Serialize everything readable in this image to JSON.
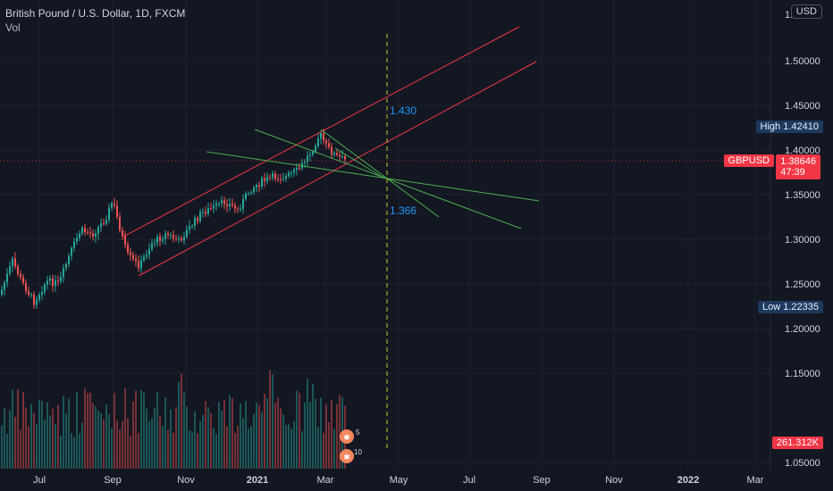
{
  "header": {
    "title": "British Pound / U.S. Dollar, 1D, FXCM",
    "volume_label": "Vol",
    "currency_button": "USD"
  },
  "price_axis": {
    "ticks": [
      "1.50000",
      "1.45000",
      "1.40000",
      "1.35000",
      "1.30000",
      "1.25000",
      "1.20000",
      "1.15000",
      "1.05000"
    ],
    "top_partial": "1."
  },
  "time_axis": {
    "ticks": [
      "Jul",
      "Sep",
      "Nov",
      "2021",
      "Mar",
      "May",
      "Jul",
      "Sep",
      "Nov",
      "2022",
      "Mar"
    ]
  },
  "tags": {
    "high": "High  1.42410",
    "low": "Low  1.22335",
    "symbol": "GBPUSD",
    "price": "1.38646",
    "countdown": "47:39",
    "volume": "261.312K"
  },
  "annotations": {
    "upper_target": "1.430",
    "lower_target": "1.366"
  },
  "event_badges": [
    "5",
    "10"
  ],
  "colors": {
    "background": "#131722",
    "up_candle": "#26a69a",
    "down_candle": "#ef5350",
    "channel": "#f23645",
    "fan_lines": "#4caf50",
    "vertical_marker": "#c0ca33",
    "annotation_text": "#2196f3",
    "tag_blue": "#1e3a5f",
    "tag_red": "#f23645"
  }
}
